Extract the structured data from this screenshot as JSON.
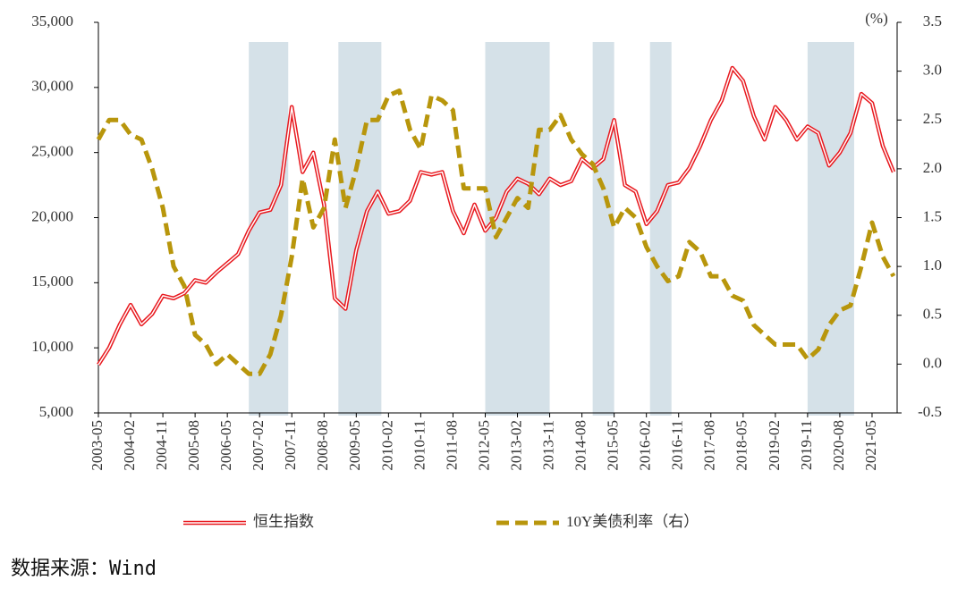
{
  "chart_data": {
    "type": "line",
    "x": [
      "2003-05",
      "2003-08",
      "2003-11",
      "2004-02",
      "2004-05",
      "2004-08",
      "2004-11",
      "2005-02",
      "2005-05",
      "2005-08",
      "2005-11",
      "2006-02",
      "2006-05",
      "2006-08",
      "2006-11",
      "2007-02",
      "2007-05",
      "2007-08",
      "2007-11",
      "2008-02",
      "2008-05",
      "2008-08",
      "2008-11",
      "2009-02",
      "2009-05",
      "2009-08",
      "2009-11",
      "2010-02",
      "2010-05",
      "2010-08",
      "2010-11",
      "2011-02",
      "2011-05",
      "2011-08",
      "2011-11",
      "2012-02",
      "2012-05",
      "2012-08",
      "2012-11",
      "2013-02",
      "2013-05",
      "2013-08",
      "2013-11",
      "2014-02",
      "2014-05",
      "2014-08",
      "2014-11",
      "2015-02",
      "2015-05",
      "2015-08",
      "2015-11",
      "2016-02",
      "2016-05",
      "2016-08",
      "2016-11",
      "2017-02",
      "2017-05",
      "2017-08",
      "2017-11",
      "2018-02",
      "2018-05",
      "2018-08",
      "2018-11",
      "2019-02",
      "2019-05",
      "2019-08",
      "2019-11",
      "2020-02",
      "2020-05",
      "2020-08",
      "2020-11",
      "2021-02",
      "2021-05",
      "2021-08",
      "2021-11"
    ],
    "series": [
      {
        "name": "恒生指数",
        "color": "#e8191f",
        "values": [
          8700,
          10000,
          11800,
          13300,
          11800,
          12600,
          14000,
          13800,
          14200,
          15200,
          15000,
          15800,
          16500,
          17200,
          19000,
          20400,
          20600,
          22500,
          28500,
          23500,
          25000,
          21000,
          13800,
          13000,
          17500,
          20500,
          22000,
          20300,
          20500,
          21300,
          23500,
          23300,
          23500,
          20500,
          18800,
          21000,
          19000,
          20000,
          22000,
          23000,
          22600,
          21800,
          23000,
          22500,
          22800,
          24500,
          23800,
          24500,
          27500,
          22500,
          22000,
          19500,
          20500,
          22500,
          22700,
          23800,
          25500,
          27500,
          29000,
          31500,
          30500,
          27800,
          26000,
          28500,
          27500,
          26000,
          27000,
          26500,
          24000,
          25000,
          26500,
          29500,
          28800,
          25500,
          23500
        ]
      },
      {
        "name": "10Y美债利率（右）",
        "color": "#b8960c",
        "axis": "y2",
        "values": [
          2.3,
          2.5,
          2.5,
          2.35,
          2.3,
          2.0,
          1.6,
          1.0,
          0.8,
          0.3,
          0.2,
          0.0,
          0.1,
          0.0,
          -0.1,
          -0.1,
          0.1,
          0.5,
          1.1,
          1.9,
          1.4,
          1.6,
          2.3,
          1.6,
          2.0,
          2.5,
          2.5,
          2.75,
          2.8,
          2.4,
          2.2,
          2.75,
          2.7,
          2.6,
          1.8,
          1.8,
          1.8,
          1.3,
          1.5,
          1.7,
          1.6,
          2.4,
          2.4,
          2.55,
          2.3,
          2.15,
          2.05,
          1.8,
          1.4,
          1.6,
          1.5,
          1.2,
          1.0,
          0.85,
          0.9,
          1.25,
          1.15,
          0.9,
          0.9,
          0.7,
          0.65,
          0.4,
          0.3,
          0.2,
          0.2,
          0.2,
          0.05,
          0.15,
          0.4,
          0.55,
          0.6,
          1.0,
          1.45,
          1.1,
          0.9
        ]
      }
    ],
    "shaded_periods": [
      [
        "2006-11",
        "2007-10"
      ],
      [
        "2008-12",
        "2009-12"
      ],
      [
        "2012-05",
        "2013-11"
      ],
      [
        "2014-11",
        "2015-05"
      ],
      [
        "2016-03",
        "2016-09"
      ],
      [
        "2019-11",
        "2020-12"
      ]
    ],
    "xlim": [
      "2003-05",
      "2021-12"
    ],
    "xticks": [
      "2003-05",
      "2004-02",
      "2004-11",
      "2005-08",
      "2006-05",
      "2007-02",
      "2007-11",
      "2008-08",
      "2009-05",
      "2010-02",
      "2010-11",
      "2011-08",
      "2012-05",
      "2013-02",
      "2013-11",
      "2014-08",
      "2015-05",
      "2016-02",
      "2016-11",
      "2017-08",
      "2018-05",
      "2019-02",
      "2019-11",
      "2020-08",
      "2021-05"
    ],
    "ylim": [
      5000,
      35000
    ],
    "yticks": [
      {
        "value": 5000,
        "label": "5,000"
      },
      {
        "value": 10000,
        "label": "10,000"
      },
      {
        "value": 15000,
        "label": "15,000"
      },
      {
        "value": 20000,
        "label": "20,000"
      },
      {
        "value": 25000,
        "label": "25,000"
      },
      {
        "value": 30000,
        "label": "30,000"
      },
      {
        "value": 35000,
        "label": "35,000"
      }
    ],
    "y2lim": [
      -0.5,
      3.5
    ],
    "y2ticks": [
      -0.5,
      {
        "value": 0,
        "label": "0.0"
      },
      0.5,
      {
        "value": 1,
        "label": "1.0"
      },
      1.5,
      {
        "value": 2,
        "label": "2.0"
      },
      2.5,
      {
        "value": 3,
        "label": "3.0"
      },
      3.5
    ],
    "y2_unit": "(%)",
    "source": "数据来源：Wind"
  }
}
